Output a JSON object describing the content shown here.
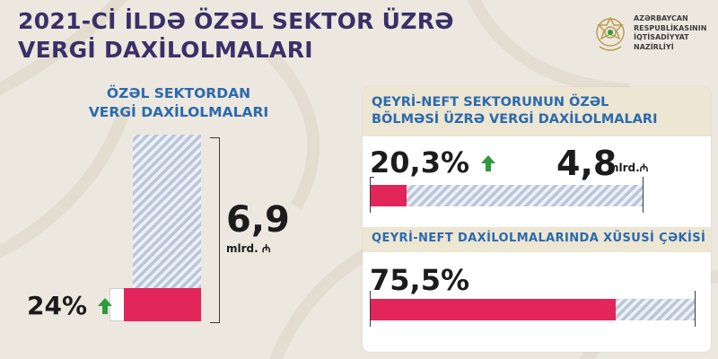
{
  "title": {
    "line1": "2021-Cİ İLDƏ ÖZƏL SEKTOR ÜZRƏ",
    "line2": "VERGİ DAXİLOLMALARI"
  },
  "logo": {
    "org": "AZƏRBAYCAN\nRESPUBLİKASININ\nİQTİSADİYYAT\nNAZİRLİYİ",
    "icon": "emblem-icon"
  },
  "left_panel": {
    "heading_line1": "ÖZƏL SEKTORDAN",
    "heading_line2": "VERGİ DAXİLOLMALARI",
    "total_value": "6,9",
    "total_unit": "mlrd. ₼",
    "growth": "24%",
    "growth_fraction": 0.24,
    "growth_icon": "up-arrow-icon"
  },
  "right_panel": {
    "section1_line1": "QEYRİ-NEFT SEKTORUNUN ÖZƏL",
    "section1_line2": "BÖLMƏSİ ÜZRƏ VERGİ DAXİLOLMALARI",
    "section1_growth": "20,3%",
    "section1_growth_icon": "up-arrow-icon",
    "section1_value": "4,8",
    "section1_unit": "mlrd.₼",
    "section2_heading": "QEYRİ-NEFT DAXİLOLMALARINDA XÜSUSİ ÇƏKİSİ",
    "section2_share": "75,5%",
    "section2_fraction": 0.755
  },
  "colors": {
    "accent_pink": "#e3265a",
    "title": "#3a3068",
    "heading_blue": "#2b6aae",
    "arrow_green": "#2e9a3c",
    "background": "#ede8df"
  }
}
